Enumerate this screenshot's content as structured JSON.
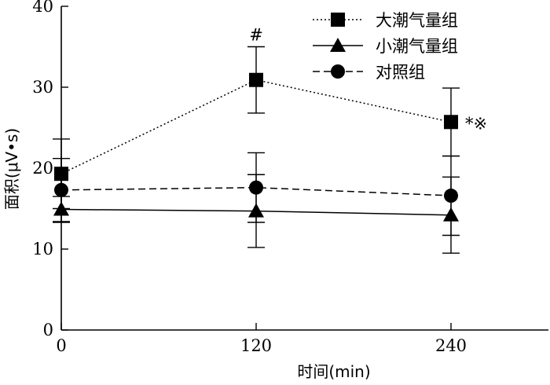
{
  "chart_data": {
    "type": "line",
    "xlabel": "时间(min)",
    "ylabel": "面积(μV•s)",
    "x": [
      0,
      120,
      240
    ],
    "x_ticks": [
      "0",
      "120",
      "240"
    ],
    "y_ticks": [
      "0",
      "10",
      "20",
      "30",
      "40"
    ],
    "xlim": [
      0,
      300
    ],
    "ylim": [
      0,
      40
    ],
    "grid": false,
    "legend_position": "top-right",
    "series": [
      {
        "name": "大潮气量组",
        "marker": "square",
        "line_style": "dotted",
        "values": [
          19.3,
          30.9,
          25.7
        ],
        "error": [
          4.3,
          4.1,
          4.2
        ]
      },
      {
        "name": "小潮气量组",
        "marker": "triangle",
        "line_style": "solid",
        "values": [
          14.9,
          14.7,
          14.2
        ],
        "error": [
          1.6,
          4.5,
          4.7
        ]
      },
      {
        "name": "对照组",
        "marker": "circle",
        "line_style": "dashed",
        "values": [
          17.3,
          17.6,
          16.6
        ],
        "error": [
          3.9,
          4.3,
          4.9
        ]
      }
    ],
    "annotations": [
      {
        "text": "#",
        "series": 0,
        "x": 120
      },
      {
        "text": "*※",
        "series": 0,
        "x": 240
      }
    ]
  }
}
